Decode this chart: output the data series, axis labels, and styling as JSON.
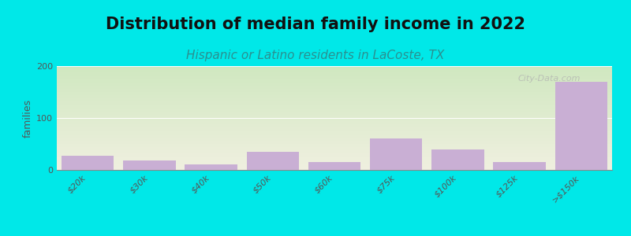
{
  "title": "Distribution of median family income in 2022",
  "subtitle": "Hispanic or Latino residents in LaCoste, TX",
  "ylabel": "families",
  "categories": [
    "$20k",
    "$30k",
    "$40k",
    "$50k",
    "$60k",
    "$75k",
    "$100k",
    "$125k",
    ">$150k"
  ],
  "values": [
    28,
    18,
    10,
    35,
    15,
    60,
    40,
    15,
    170
  ],
  "bar_color": "#c9afd4",
  "background_outer": "#00e8e8",
  "plot_bg_top": "#d0e8c0",
  "plot_bg_bottom": "#f0f0e0",
  "title_fontsize": 15,
  "subtitle_fontsize": 11,
  "ylabel_fontsize": 9,
  "tick_fontsize": 8,
  "ylim": [
    0,
    200
  ],
  "yticks": [
    0,
    100,
    200
  ],
  "watermark": "City-Data.com",
  "watermark_color": "#b0b0b0",
  "subtitle_color": "#2a9090",
  "title_color": "#111111",
  "figsize": [
    8.0,
    3.0
  ],
  "dpi": 100
}
